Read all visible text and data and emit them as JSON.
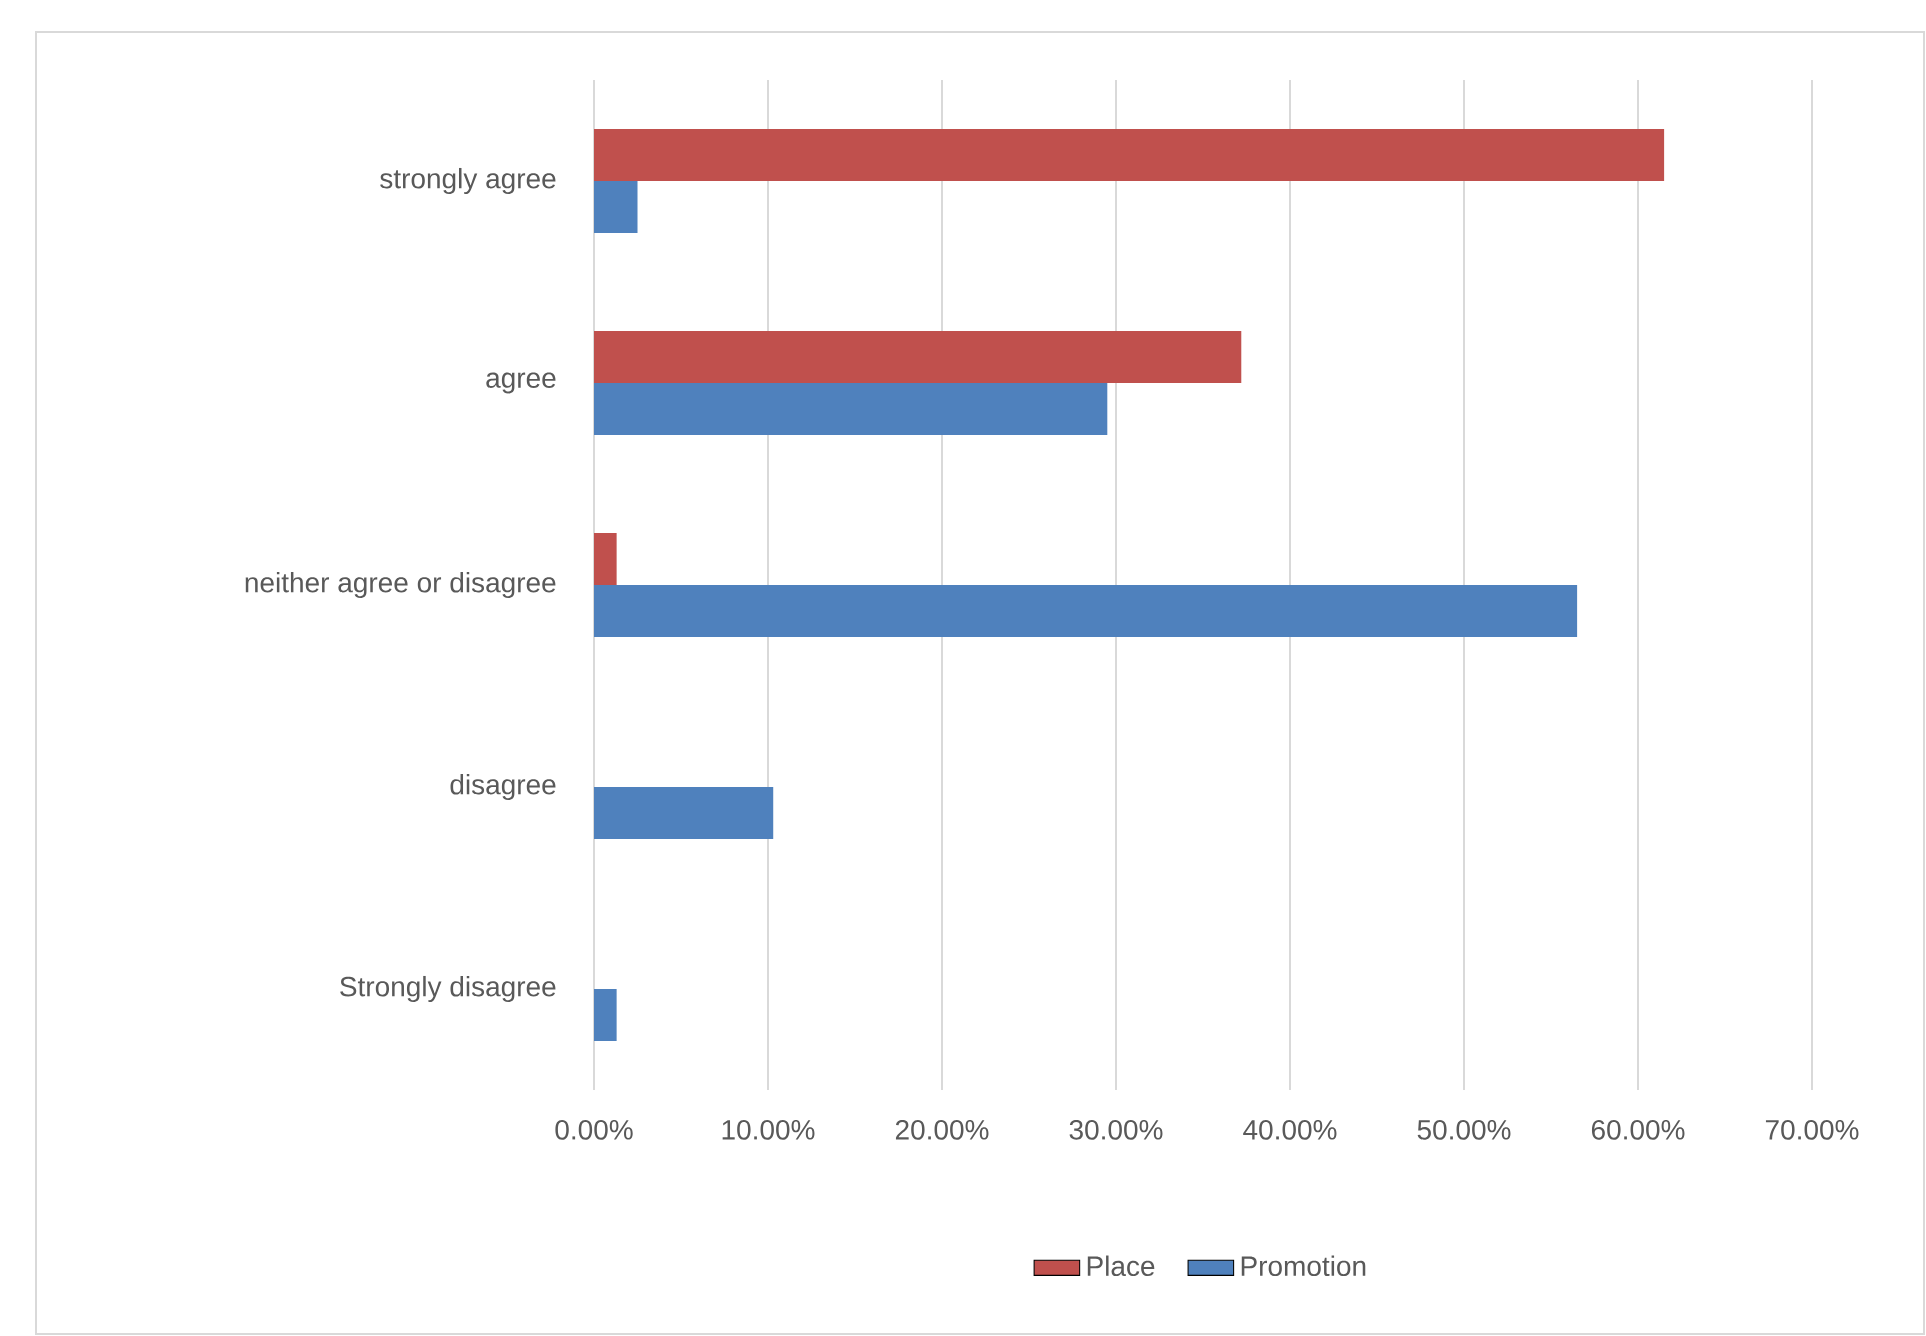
{
  "chart_data": {
    "type": "bar",
    "orientation": "horizontal",
    "categories": [
      "strongly agree",
      "agree",
      "neither agree or disagree",
      "disagree",
      "Strongly disagree"
    ],
    "series": [
      {
        "name": "Place",
        "color": "#c0504d",
        "values": [
          61.5,
          37.2,
          1.3,
          0,
          0
        ]
      },
      {
        "name": "Promotion",
        "color": "#4f81bd",
        "values": [
          2.5,
          29.5,
          56.5,
          10.3,
          1.3
        ]
      }
    ],
    "xlim": [
      0,
      70
    ],
    "xticks": [
      {
        "value": 0,
        "label": "0.00%"
      },
      {
        "value": 10,
        "label": "10.00%"
      },
      {
        "value": 20,
        "label": "20.00%"
      },
      {
        "value": 30,
        "label": "30.00%"
      },
      {
        "value": 40,
        "label": "40.00%"
      },
      {
        "value": 50,
        "label": "50.00%"
      },
      {
        "value": 60,
        "label": "60.00%"
      },
      {
        "value": 70,
        "label": "70.00%"
      }
    ],
    "grid": "x",
    "legend": "bottom"
  }
}
